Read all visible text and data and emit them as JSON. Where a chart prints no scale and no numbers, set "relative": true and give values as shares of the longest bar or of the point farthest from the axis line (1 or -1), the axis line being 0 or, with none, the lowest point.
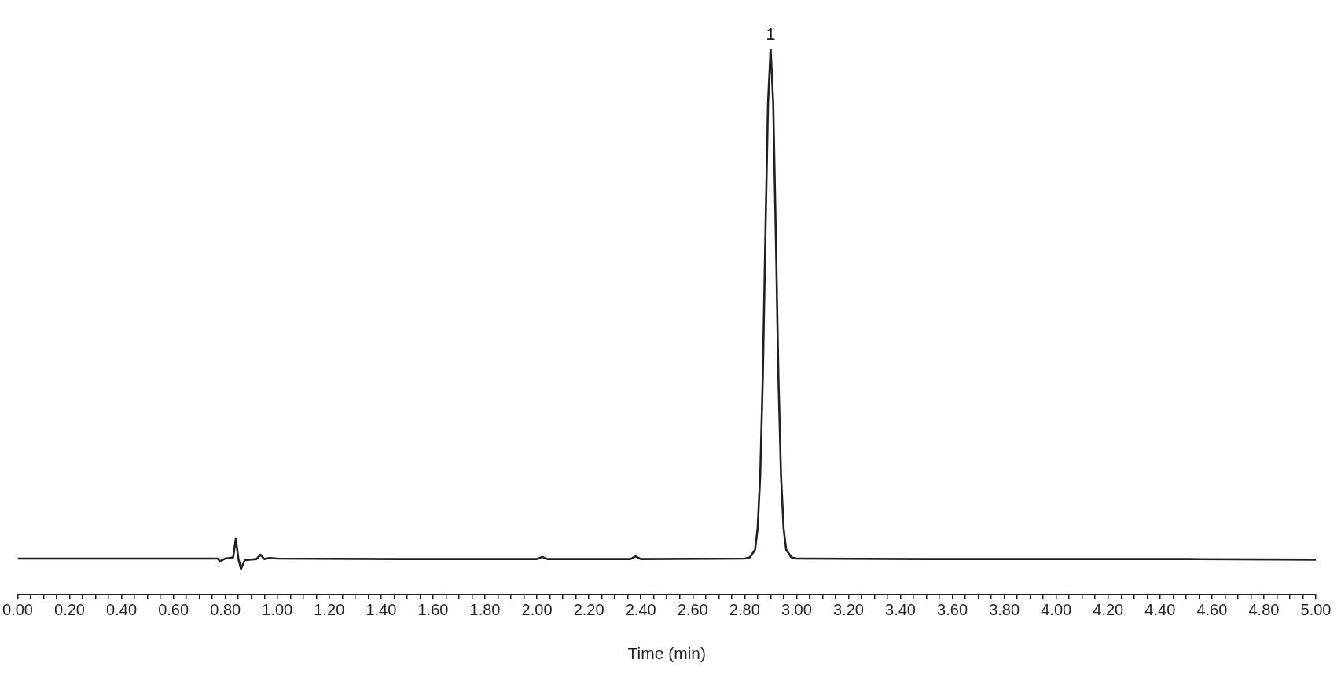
{
  "chart_data": {
    "type": "line",
    "relative": true,
    "xlabel": "Time (min)",
    "xlim": [
      0,
      5
    ],
    "xticks": [
      {
        "value": 0,
        "label": "0.00"
      },
      {
        "value": 0.05,
        "label": null
      },
      {
        "value": 0.1,
        "label": null
      },
      {
        "value": 0.15,
        "label": null
      },
      {
        "value": 0.2,
        "label": "0.20"
      },
      {
        "value": 0.25,
        "label": null
      },
      {
        "value": 0.3,
        "label": null
      },
      {
        "value": 0.35,
        "label": null
      },
      {
        "value": 0.4,
        "label": "0.40"
      },
      {
        "value": 0.45,
        "label": null
      },
      {
        "value": 0.5,
        "label": null
      },
      {
        "value": 0.55,
        "label": null
      },
      {
        "value": 0.6,
        "label": "0.60"
      },
      {
        "value": 0.65,
        "label": null
      },
      {
        "value": 0.7,
        "label": null
      },
      {
        "value": 0.75,
        "label": null
      },
      {
        "value": 0.8,
        "label": "0.80"
      },
      {
        "value": 0.85,
        "label": null
      },
      {
        "value": 0.9,
        "label": null
      },
      {
        "value": 0.95,
        "label": null
      },
      {
        "value": 1,
        "label": "1.00"
      },
      {
        "value": 1.05,
        "label": null
      },
      {
        "value": 1.1,
        "label": null
      },
      {
        "value": 1.15,
        "label": null
      },
      {
        "value": 1.2,
        "label": "1.20"
      },
      {
        "value": 1.25,
        "label": null
      },
      {
        "value": 1.3,
        "label": null
      },
      {
        "value": 1.35,
        "label": null
      },
      {
        "value": 1.4,
        "label": "1.40"
      },
      {
        "value": 1.45,
        "label": null
      },
      {
        "value": 1.5,
        "label": null
      },
      {
        "value": 1.55,
        "label": null
      },
      {
        "value": 1.6,
        "label": "1.60"
      },
      {
        "value": 1.65,
        "label": null
      },
      {
        "value": 1.7,
        "label": null
      },
      {
        "value": 1.75,
        "label": null
      },
      {
        "value": 1.8,
        "label": "1.80"
      },
      {
        "value": 1.85,
        "label": null
      },
      {
        "value": 1.9,
        "label": null
      },
      {
        "value": 1.95,
        "label": null
      },
      {
        "value": 2,
        "label": "2.00"
      },
      {
        "value": 2.05,
        "label": null
      },
      {
        "value": 2.1,
        "label": null
      },
      {
        "value": 2.15,
        "label": null
      },
      {
        "value": 2.2,
        "label": "2.20"
      },
      {
        "value": 2.25,
        "label": null
      },
      {
        "value": 2.3,
        "label": null
      },
      {
        "value": 2.35,
        "label": null
      },
      {
        "value": 2.4,
        "label": "2.40"
      },
      {
        "value": 2.45,
        "label": null
      },
      {
        "value": 2.5,
        "label": null
      },
      {
        "value": 2.55,
        "label": null
      },
      {
        "value": 2.6,
        "label": "2.60"
      },
      {
        "value": 2.65,
        "label": null
      },
      {
        "value": 2.7,
        "label": null
      },
      {
        "value": 2.75,
        "label": null
      },
      {
        "value": 2.8,
        "label": "2.80"
      },
      {
        "value": 2.85,
        "label": null
      },
      {
        "value": 2.9,
        "label": null
      },
      {
        "value": 2.95,
        "label": null
      },
      {
        "value": 3,
        "label": "3.00"
      },
      {
        "value": 3.05,
        "label": null
      },
      {
        "value": 3.1,
        "label": null
      },
      {
        "value": 3.15,
        "label": null
      },
      {
        "value": 3.2,
        "label": "3.20"
      },
      {
        "value": 3.25,
        "label": null
      },
      {
        "value": 3.3,
        "label": null
      },
      {
        "value": 3.35,
        "label": null
      },
      {
        "value": 3.4,
        "label": "3.40"
      },
      {
        "value": 3.45,
        "label": null
      },
      {
        "value": 3.5,
        "label": null
      },
      {
        "value": 3.55,
        "label": null
      },
      {
        "value": 3.6,
        "label": "3.60"
      },
      {
        "value": 3.65,
        "label": null
      },
      {
        "value": 3.7,
        "label": null
      },
      {
        "value": 3.75,
        "label": null
      },
      {
        "value": 3.8,
        "label": "3.80"
      },
      {
        "value": 3.85,
        "label": null
      },
      {
        "value": 3.9,
        "label": null
      },
      {
        "value": 3.95,
        "label": null
      },
      {
        "value": 4,
        "label": "4.00"
      },
      {
        "value": 4.05,
        "label": null
      },
      {
        "value": 4.1,
        "label": null
      },
      {
        "value": 4.15,
        "label": null
      },
      {
        "value": 4.2,
        "label": "4.20"
      },
      {
        "value": 4.25,
        "label": null
      },
      {
        "value": 4.3,
        "label": null
      },
      {
        "value": 4.35,
        "label": null
      },
      {
        "value": 4.4,
        "label": "4.40"
      },
      {
        "value": 4.45,
        "label": null
      },
      {
        "value": 4.5,
        "label": null
      },
      {
        "value": 4.55,
        "label": null
      },
      {
        "value": 4.6,
        "label": "4.60"
      },
      {
        "value": 4.65,
        "label": null
      },
      {
        "value": 4.7,
        "label": null
      },
      {
        "value": 4.75,
        "label": null
      },
      {
        "value": 4.8,
        "label": "4.80"
      },
      {
        "value": 4.85,
        "label": null
      },
      {
        "value": 4.9,
        "label": null
      },
      {
        "value": 4.95,
        "label": null
      },
      {
        "value": 5,
        "label": "5.00"
      }
    ],
    "x": [
      0,
      0.5,
      0.77,
      0.78,
      0.8,
      0.83,
      0.84,
      0.85,
      0.86,
      0.875,
      0.92,
      0.935,
      0.95,
      0.97,
      1.0,
      1.5,
      2.0,
      2.02,
      2.04,
      2.36,
      2.38,
      2.4,
      2.8,
      2.82,
      2.84,
      2.85,
      2.86,
      2.87,
      2.88,
      2.89,
      2.9,
      2.91,
      2.92,
      2.93,
      2.94,
      2.95,
      2.96,
      2.98,
      3.0,
      3.5,
      4.0,
      4.5,
      5.0
    ],
    "series": [
      {
        "color": "#231f20",
        "values": [
          0.066,
          0.066,
          0.066,
          0.061,
          0.066,
          0.068,
          0.102,
          0.066,
          0.047,
          0.063,
          0.065,
          0.073,
          0.065,
          0.067,
          0.066,
          0.065,
          0.065,
          0.069,
          0.065,
          0.065,
          0.07,
          0.065,
          0.066,
          0.068,
          0.082,
          0.121,
          0.218,
          0.4,
          0.66,
          0.9,
          1,
          0.9,
          0.66,
          0.4,
          0.218,
          0.121,
          0.082,
          0.068,
          0.066,
          0.065,
          0.065,
          0.065,
          0.064
        ]
      }
    ],
    "annotations": [
      {
        "text": "1",
        "x": 2.9,
        "y": 1
      }
    ],
    "grid": false,
    "legend": false,
    "marker": "none",
    "line_style": "solid"
  }
}
